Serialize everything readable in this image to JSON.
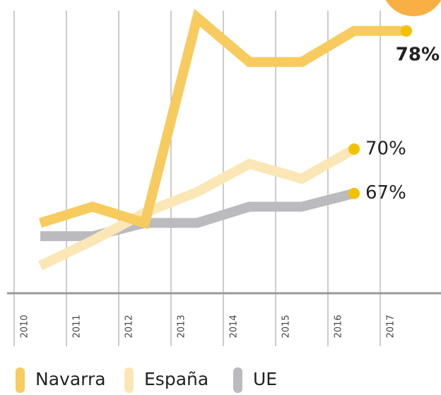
{
  "chart_data": {
    "type": "line",
    "categories": [
      "2010",
      "2011",
      "2012",
      "2013",
      "2014",
      "2015",
      "2016",
      "2017"
    ],
    "series": [
      {
        "name": "Navarra",
        "color": "#f7cb5e",
        "values": [
          65,
          66.1,
          65,
          78.9,
          75.9,
          75.9,
          78,
          78
        ],
        "value_labels": [
          null,
          null,
          null,
          null,
          null,
          null,
          null,
          "78%"
        ]
      },
      {
        "name": "España",
        "color": "#fbe7b6",
        "values": [
          62.1,
          63.8,
          65.7,
          67.1,
          69,
          68,
          70,
          null
        ],
        "value_labels": [
          null,
          null,
          null,
          null,
          null,
          null,
          "70%",
          null
        ]
      },
      {
        "name": "UE",
        "color": "#bbbbbf",
        "values": [
          64.1,
          64.1,
          65,
          65,
          66.1,
          66.1,
          67,
          null
        ],
        "value_labels": [
          null,
          null,
          null,
          null,
          null,
          null,
          "67%",
          null
        ]
      }
    ],
    "ylim": [
      60,
      80
    ],
    "grid": true,
    "marker_color": "#f2c200"
  }
}
